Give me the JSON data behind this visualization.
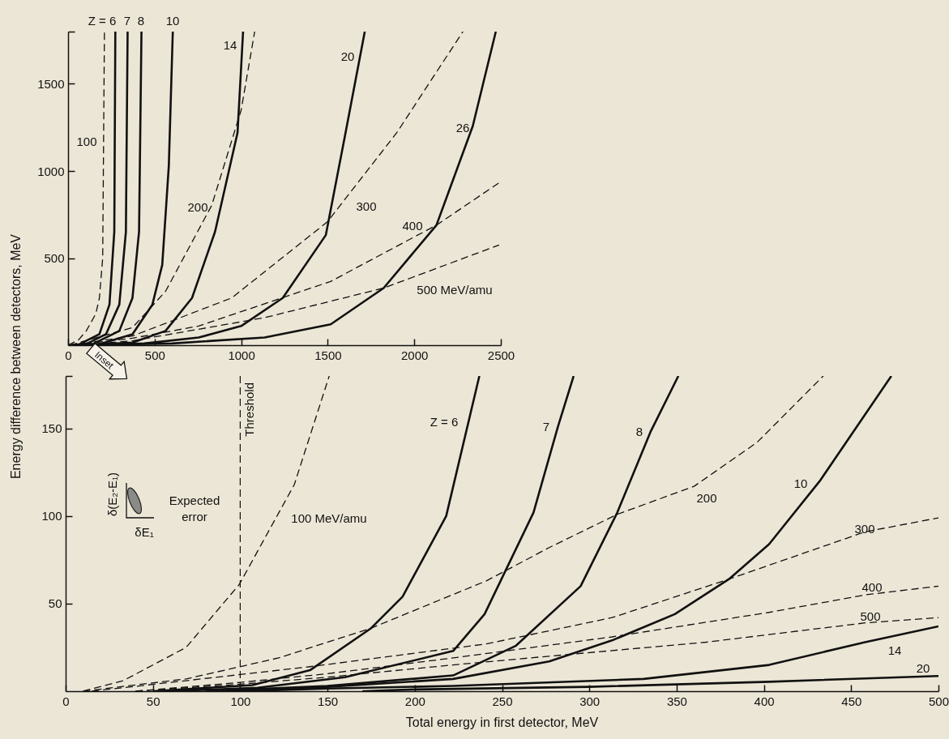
{
  "chart_data": [
    {
      "type": "line",
      "xlim": [
        0,
        2500
      ],
      "ylim": [
        0,
        1800
      ],
      "xticks": [
        0,
        500,
        1000,
        1500,
        2000,
        2500
      ],
      "yticks": [
        500,
        1000,
        1500,
        {
          "value": 1800,
          "label": null
        }
      ],
      "series": [
        {
          "color": "#111111",
          "line_style": "solid",
          "x": [
            20,
            67,
            181,
            239,
            267,
            273
          ],
          "values": [
            0,
            6,
            63,
            233,
            651,
            1800
          ]
        },
        {
          "color": "#111111",
          "line_style": "solid",
          "x": [
            25,
            105,
            219,
            296,
            334,
            344
          ],
          "values": [
            0,
            6,
            63,
            233,
            651,
            1800
          ]
        },
        {
          "color": "#111111",
          "line_style": "solid",
          "x": [
            30,
            143,
            296,
            372,
            410,
            424
          ],
          "values": [
            0,
            6,
            82,
            271,
            651,
            1800
          ]
        },
        {
          "color": "#111111",
          "line_style": "solid",
          "x": [
            40,
            181,
            372,
            487,
            544,
            582,
            605
          ],
          "values": [
            0,
            6,
            63,
            233,
            461,
            1030,
            1800
          ]
        },
        {
          "color": "#111111",
          "line_style": "solid",
          "x": [
            60,
            372,
            563,
            716,
            849,
            979,
            1011
          ],
          "values": [
            0,
            15,
            82,
            271,
            651,
            1220,
            1800
          ]
        },
        {
          "color": "#111111",
          "line_style": "solid",
          "x": [
            80,
            440,
            754,
            1000,
            1240,
            1489,
            1603,
            1714
          ],
          "values": [
            0,
            10,
            44,
            110,
            271,
            632,
            1220,
            1800
          ]
        },
        {
          "color": "#111111",
          "line_style": "solid",
          "x": [
            100,
            600,
            1135,
            1517,
            1823,
            2128,
            2338,
            2471
          ],
          "values": [
            0,
            10,
            44,
            120,
            328,
            689,
            1258,
            1800
          ]
        },
        {
          "color": "#111111",
          "line_style": "dashed",
          "x": [
            0,
            60,
            105,
            160,
            181,
            200,
            210
          ],
          "values": [
            0,
            30,
            82,
            180,
            271,
            500,
            1800
          ]
        },
        {
          "color": "#111111",
          "line_style": "dashed",
          "x": [
            10,
            372,
            563,
            830,
            1000,
            1078
          ],
          "values": [
            0,
            101,
            309,
            803,
            1350,
            1800
          ]
        },
        {
          "color": "#111111",
          "line_style": "dashed",
          "x": [
            20,
            372,
            945,
            1498,
            1899,
            2281
          ],
          "values": [
            0,
            53,
            271,
            708,
            1220,
            1800
          ]
        },
        {
          "color": "#111111",
          "line_style": "dashed",
          "x": [
            30,
            372,
            754,
            1517,
            2128,
            2500
          ],
          "values": [
            0,
            40,
            110,
            366,
            689,
            939
          ]
        },
        {
          "color": "#111111",
          "line_style": "dashed",
          "x": [
            40,
            372,
            1135,
            1823,
            2490
          ],
          "values": [
            0,
            25,
            158,
            328,
            575
          ]
        }
      ],
      "annotations": [
        "Inset",
        "Z = 6",
        "7",
        "8",
        "10",
        "14",
        "20",
        "26",
        "100",
        "200",
        "300",
        "400",
        "500 MeV/amu"
      ]
    },
    {
      "type": "line",
      "xlabel": "Total energy in first detector, MeV",
      "ylabel": "Energy difference between detectors, MeV",
      "xlim": [
        0,
        500
      ],
      "ylim": [
        0,
        180
      ],
      "xticks": [
        0,
        50,
        100,
        150,
        200,
        250,
        300,
        350,
        400,
        450,
        500
      ],
      "yticks": [
        50,
        100,
        150,
        {
          "value": 180,
          "label": null
        }
      ],
      "series": [
        {
          "color": "#111111",
          "line_style": "solid",
          "x": [
            50,
            107,
            140,
            175,
            193,
            218,
            237
          ],
          "values": [
            0,
            3.5,
            12,
            36,
            54,
            100,
            180
          ]
        },
        {
          "color": "#111111",
          "line_style": "solid",
          "x": [
            60,
            110,
            160,
            222,
            240,
            268,
            282,
            291
          ],
          "values": [
            0,
            2,
            8,
            23,
            44,
            102,
            151,
            180
          ]
        },
        {
          "color": "#111111",
          "line_style": "solid",
          "x": [
            80,
            150,
            222,
            258,
            295,
            316,
            335,
            351
          ],
          "values": [
            0,
            3,
            9,
            26,
            60,
            102,
            148,
            180
          ]
        },
        {
          "color": "#111111",
          "line_style": "solid",
          "x": [
            90,
            150,
            222,
            277,
            313,
            349,
            380,
            403,
            432,
            473
          ],
          "values": [
            0,
            2.5,
            7,
            17,
            29,
            44,
            64,
            84,
            120,
            180
          ]
        },
        {
          "color": "#111111",
          "line_style": "solid",
          "x": [
            100,
            150,
            222,
            331,
            403,
            458,
            500
          ],
          "values": [
            0,
            1.5,
            3,
            7,
            15,
            28,
            37
          ]
        },
        {
          "color": "#111111",
          "line_style": "solid",
          "x": [
            170,
            200,
            300,
            403,
            500
          ],
          "values": [
            0,
            1,
            2.5,
            5.4,
            8.7
          ]
        },
        {
          "color": "#111111",
          "line_style": "dashed",
          "x": [
            10,
            33,
            69,
            99.5,
            131,
            151
          ],
          "values": [
            0,
            6,
            25,
            61,
            118,
            180
          ]
        },
        {
          "color": "#111111",
          "line_style": "dashed",
          "x": [
            10,
            69,
            122,
            175,
            241,
            277,
            316,
            360,
            396,
            434
          ],
          "values": [
            0,
            7,
            19,
            36,
            63,
            82,
            101,
            117,
            142,
            180
          ]
        },
        {
          "color": "#111111",
          "line_style": "dashed",
          "x": [
            15,
            51,
            140,
            241,
            313,
            380,
            458,
            500
          ],
          "values": [
            0,
            4,
            14,
            27,
            42,
            64,
            91,
            99
          ]
        },
        {
          "color": "#111111",
          "line_style": "dashed",
          "x": [
            40,
            100,
            150,
            222,
            313,
            403,
            458,
            500
          ],
          "values": [
            0,
            5,
            10,
            19,
            31,
            45,
            55,
            60
          ]
        },
        {
          "color": "#111111",
          "line_style": "dashed",
          "x": [
            40,
            100,
            150,
            222,
            277,
            367,
            458,
            500
          ],
          "values": [
            0,
            4,
            8,
            15,
            20,
            28,
            39,
            42
          ]
        }
      ],
      "ref_lines": [
        {
          "axis": "x",
          "value": 100,
          "label": "Threshold",
          "line_style": "dashed",
          "color": "#111111"
        }
      ],
      "annotations": [
        "Expected error",
        "δ(E₂-E₁)",
        "δE₁",
        "Z = 6",
        "7",
        "8",
        "10",
        "14",
        "20",
        "100 MeV/amu",
        "200",
        "300",
        "400",
        "500"
      ]
    }
  ]
}
